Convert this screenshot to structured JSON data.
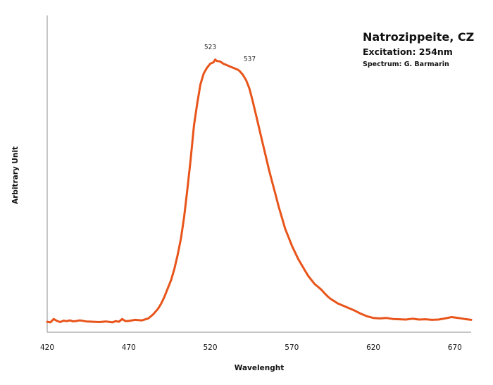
{
  "chart_data": {
    "type": "line",
    "title": "Natrozippeite, CZ",
    "subtitle": "Excitation: 254nm",
    "credit": "Spectrum: G. Barmarin",
    "xlabel": "Wavelenght",
    "ylabel": "Arbitrary Unit",
    "xlim": [
      420,
      680
    ],
    "ylim": [
      0,
      1.15
    ],
    "xticks": [
      420,
      470,
      520,
      570,
      620,
      670
    ],
    "yticks": [],
    "grid": false,
    "line_color": "#E8541A",
    "annotations": [
      {
        "text": "523",
        "x": 523,
        "y": 1.0
      },
      {
        "text": "537",
        "x": 537,
        "y": 0.965
      }
    ],
    "series": [
      {
        "x": [
          420,
          422,
          424,
          426,
          428,
          430,
          432,
          434,
          436,
          438,
          440,
          444,
          448,
          452,
          456,
          460,
          462,
          464,
          466,
          468,
          470,
          474,
          478,
          482,
          485,
          488,
          490,
          492,
          494,
          496,
          498,
          500,
          502,
          504,
          506,
          508,
          510,
          512,
          514,
          516,
          518,
          520,
          522,
          523,
          524,
          526,
          528,
          530,
          532,
          534,
          536,
          537,
          538,
          540,
          542,
          544,
          546,
          548,
          550,
          552,
          554,
          556,
          558,
          560,
          562,
          564,
          566,
          568,
          570,
          572,
          574,
          576,
          578,
          580,
          582,
          584,
          586,
          588,
          590,
          592,
          594,
          596,
          598,
          600,
          604,
          608,
          612,
          616,
          620,
          624,
          628,
          632,
          636,
          640,
          644,
          648,
          652,
          656,
          660,
          664,
          668,
          672,
          676,
          680
        ],
        "y": [
          0.038,
          0.036,
          0.048,
          0.041,
          0.037,
          0.042,
          0.04,
          0.043,
          0.039,
          0.041,
          0.043,
          0.039,
          0.038,
          0.037,
          0.039,
          0.036,
          0.04,
          0.038,
          0.048,
          0.04,
          0.041,
          0.045,
          0.043,
          0.05,
          0.065,
          0.085,
          0.105,
          0.13,
          0.16,
          0.19,
          0.23,
          0.28,
          0.34,
          0.42,
          0.52,
          0.63,
          0.75,
          0.83,
          0.9,
          0.94,
          0.96,
          0.975,
          0.98,
          0.99,
          0.985,
          0.983,
          0.975,
          0.97,
          0.965,
          0.96,
          0.955,
          0.953,
          0.948,
          0.935,
          0.915,
          0.885,
          0.84,
          0.79,
          0.74,
          0.69,
          0.64,
          0.59,
          0.545,
          0.5,
          0.455,
          0.415,
          0.375,
          0.345,
          0.315,
          0.29,
          0.265,
          0.245,
          0.225,
          0.205,
          0.19,
          0.175,
          0.165,
          0.155,
          0.142,
          0.13,
          0.12,
          0.113,
          0.105,
          0.1,
          0.09,
          0.08,
          0.068,
          0.058,
          0.052,
          0.05,
          0.052,
          0.048,
          0.047,
          0.046,
          0.049,
          0.046,
          0.047,
          0.045,
          0.046,
          0.05,
          0.055,
          0.052,
          0.048,
          0.045
        ]
      }
    ]
  }
}
